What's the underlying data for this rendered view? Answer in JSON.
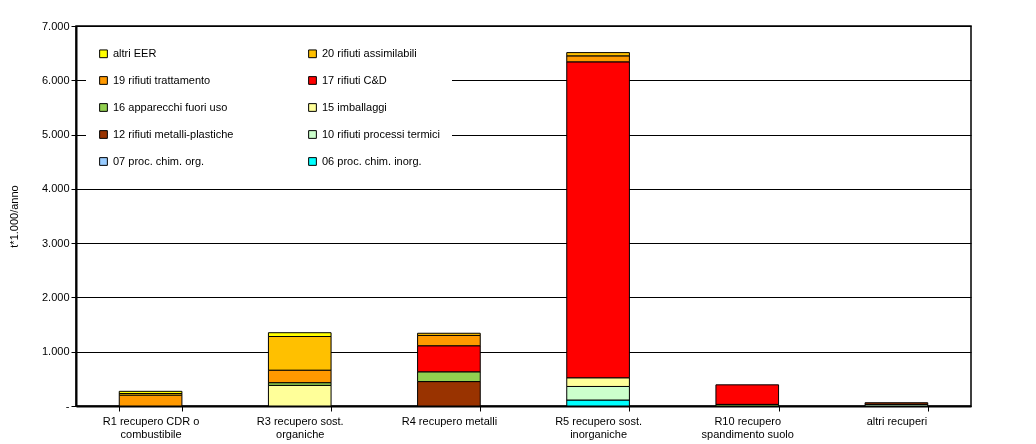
{
  "chart_data": {
    "type": "bar",
    "stacked": true,
    "ylabel": "t*1.000/anno",
    "categories": [
      "R1 recupero  CDR o combustibile",
      "R3 recupero sost. organiche",
      "R4 recupero metalli",
      "R5 recupero sost. inorganiche",
      "R10 recupero spandimento suolo",
      "altri recuperi"
    ],
    "series": [
      {
        "name": "06 proc. chim. inorg.",
        "color": "#00ffff",
        "values": [
          null,
          null,
          null,
          110,
          null,
          null
        ]
      },
      {
        "name": "07 proc. chim. org.",
        "color": "#99ccff",
        "values": [
          null,
          null,
          null,
          null,
          null,
          null
        ]
      },
      {
        "name": "10 rifiuti processi termici",
        "color": "#ccffcc",
        "values": [
          null,
          null,
          null,
          250,
          null,
          30
        ]
      },
      {
        "name": "12 rifiuti metalli-plastiche",
        "color": "#993300",
        "values": [
          null,
          null,
          450,
          null,
          null,
          30
        ]
      },
      {
        "name": "15 imballaggi",
        "color": "#ffff99",
        "values": [
          null,
          380,
          null,
          160,
          null,
          null
        ]
      },
      {
        "name": "16 apparecchi fuori uso",
        "color": "#92d050",
        "values": [
          null,
          50,
          180,
          null,
          30,
          null
        ]
      },
      {
        "name": "17 rifiuti C&D",
        "color": "#ff0000",
        "values": [
          null,
          null,
          480,
          5820,
          360,
          null
        ]
      },
      {
        "name": "19 rifiuti trattamento",
        "color": "#ff9900",
        "values": [
          200,
          230,
          190,
          110,
          null,
          null
        ]
      },
      {
        "name": "20 rifiuti assimilabili",
        "color": "#ffc000",
        "values": [
          30,
          620,
          40,
          60,
          null,
          null
        ]
      },
      {
        "name": "altri EER",
        "color": "#ffff00",
        "values": [
          40,
          70,
          null,
          null,
          null,
          null
        ]
      }
    ],
    "ylim": [
      0,
      7000
    ],
    "yticks": [
      {
        "value": 0,
        "label": "-"
      },
      {
        "value": 1000,
        "label": "1.000"
      },
      {
        "value": 2000,
        "label": "2.000"
      },
      {
        "value": 3000,
        "label": "3.000"
      },
      {
        "value": 4000,
        "label": "4.000"
      },
      {
        "value": 5000,
        "label": "5.000"
      },
      {
        "value": 6000,
        "label": "6.000"
      },
      {
        "value": 7000,
        "label": "7.000"
      }
    ],
    "grid": "y",
    "legend": "top left"
  }
}
